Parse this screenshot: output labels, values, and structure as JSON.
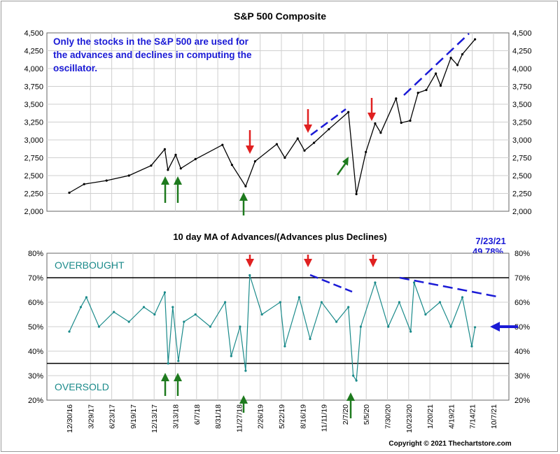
{
  "chart_data": [
    {
      "type": "line",
      "title": "S&P 500 Composite",
      "ylim": [
        2000,
        4500
      ],
      "yticks": [
        "2,000",
        "2,250",
        "2,500",
        "2,750",
        "3,000",
        "3,250",
        "3,500",
        "3,750",
        "4,000",
        "4,250",
        "4,500"
      ],
      "series": [
        {
          "color": "#000000",
          "x": [
            "2016-12-30",
            "2017-03-01",
            "2017-06-01",
            "2017-09-01",
            "2017-12-01",
            "2018-01-26",
            "2018-02-08",
            "2018-03-12",
            "2018-04-02",
            "2018-06-01",
            "2018-09-20",
            "2018-10-29",
            "2018-12-24",
            "2019-02-01",
            "2019-05-01",
            "2019-06-03",
            "2019-07-26",
            "2019-08-23",
            "2019-10-01",
            "2019-12-01",
            "2020-02-19",
            "2020-03-23",
            "2020-05-01",
            "2020-06-08",
            "2020-07-01",
            "2020-09-02",
            "2020-09-23",
            "2020-10-30",
            "2020-12-01",
            "2021-01-04",
            "2021-02-12",
            "2021-03-04",
            "2021-04-15",
            "2021-05-12",
            "2021-06-01",
            "2021-07-23"
          ],
          "values": [
            2260,
            2380,
            2430,
            2500,
            2640,
            2870,
            2580,
            2790,
            2600,
            2730,
            2930,
            2650,
            2350,
            2700,
            2940,
            2750,
            3020,
            2850,
            2960,
            3150,
            3390,
            2240,
            2830,
            3230,
            3100,
            3580,
            3240,
            3270,
            3660,
            3700,
            3930,
            3760,
            4150,
            4050,
            4200,
            4410
          ]
        }
      ],
      "annotation": "Only the stocks in the S&P 500 are used for the advances and declines in computing the oscillator."
    },
    {
      "type": "line",
      "title": "10 day MA of Advances/(Advances plus Declines)",
      "ylim": [
        20,
        80
      ],
      "yticks": [
        "20%",
        "30%",
        "40%",
        "50%",
        "60%",
        "70%",
        "80%"
      ],
      "reference_lines": [
        70,
        35
      ],
      "labels": {
        "overbought": "OVERBOUGHT",
        "oversold": "OVERSOLD"
      },
      "latest": {
        "date": "7/23/21",
        "value": "49.78%"
      },
      "series": [
        {
          "color": "#1a8a8a",
          "x": [
            "2016-12-30",
            "2017-02-15",
            "2017-03-10",
            "2017-05-01",
            "2017-07-01",
            "2017-09-01",
            "2017-11-01",
            "2017-12-15",
            "2018-01-26",
            "2018-02-09",
            "2018-02-28",
            "2018-03-23",
            "2018-04-15",
            "2018-06-01",
            "2018-08-01",
            "2018-10-01",
            "2018-10-26",
            "2018-12-01",
            "2018-12-24",
            "2019-01-10",
            "2019-03-01",
            "2019-05-15",
            "2019-06-03",
            "2019-08-01",
            "2019-09-15",
            "2019-11-01",
            "2020-01-01",
            "2020-02-19",
            "2020-03-10",
            "2020-03-23",
            "2020-04-10",
            "2020-06-08",
            "2020-08-01",
            "2020-09-15",
            "2020-11-01",
            "2020-11-15",
            "2021-01-01",
            "2021-03-01",
            "2021-04-15",
            "2021-06-01",
            "2021-07-10",
            "2021-07-23"
          ],
          "values": [
            48,
            58,
            62,
            50,
            56,
            52,
            58,
            55,
            64,
            35,
            58,
            36,
            52,
            55,
            50,
            60,
            38,
            50,
            32,
            71,
            55,
            60,
            42,
            62,
            45,
            60,
            52,
            58,
            30,
            28,
            50,
            68,
            50,
            60,
            48,
            68,
            55,
            60,
            50,
            62,
            42,
            49.78
          ]
        }
      ]
    }
  ],
  "x_axis_labels": [
    "12/30/16",
    "3/29/17",
    "6/23/17",
    "9/19/17",
    "12/13/17",
    "3/13/18",
    "6/7/18",
    "8/31/18",
    "11/27/18",
    "2/26/19",
    "5/22/19",
    "8/16/19",
    "11/11/19",
    "2/7/20",
    "5/5/20",
    "7/30/20",
    "10/23/20",
    "1/20/21",
    "4/19/21",
    "7/14/21",
    "10/7/21"
  ],
  "copyright": "Copyright © 2021 Thechartstore.com",
  "colors": {
    "price": "#000000",
    "oscillator": "#1a8a8a",
    "up_arrow": "#1e7a1e",
    "down_arrow": "#e02020",
    "trend": "#1a1ad6",
    "annotation": "#1a1ad6"
  }
}
